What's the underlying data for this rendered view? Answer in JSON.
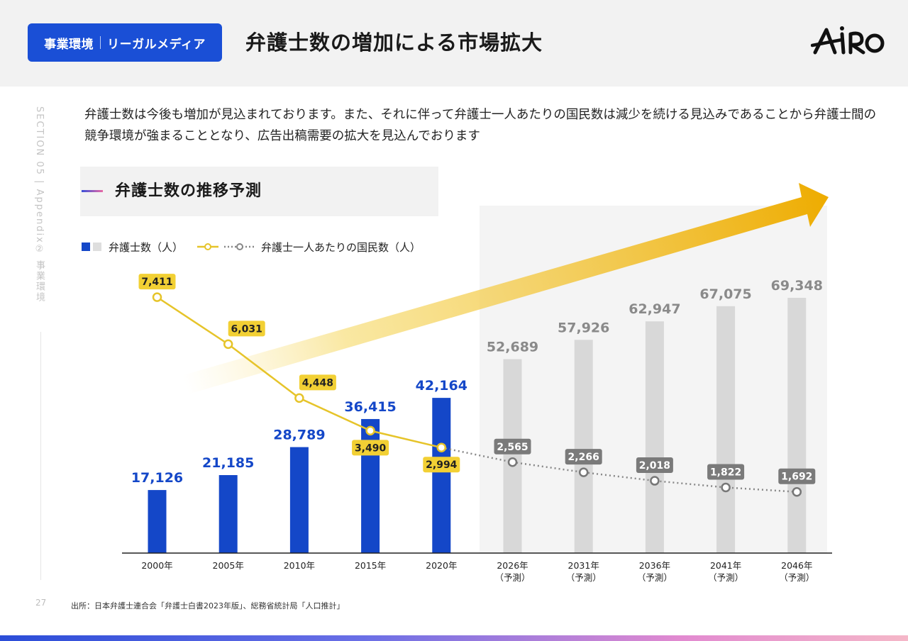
{
  "header": {
    "tag_left": "事業環境",
    "tag_right": "リーガルメディア",
    "title": "弁護士数の増加による市場拡大",
    "logo_text": "AiRo"
  },
  "side_label": "SECTION 05 | Appendix② 事業環境",
  "page_number": "27",
  "description": "弁護士数は今後も増加が見込まれております。また、それに伴って弁護士一人あたりの国民数は減少を続ける見込みであることから弁護士間の競争環境が強まることとなり、広告出稿需要の拡大を見込んでおります",
  "subtitle": "弁護士数の推移予測",
  "footnote": "出所：日本弁護士連合会「弁護士白書2023年版」、総務省統計局「人口推計」",
  "colors": {
    "actual_bar": "#1447c8",
    "forecast_bar": "#d8d8d8",
    "actual_line": "#e6c42a",
    "forecast_line": "#888888",
    "arrow": "#f0b400",
    "brand": "#1a4fd6"
  },
  "chart_data": {
    "type": "bar",
    "legend_placement": "top-left",
    "categories": [
      "2000年",
      "2005年",
      "2010年",
      "2015年",
      "2020年",
      "2026年",
      "2031年",
      "2036年",
      "2041年",
      "2046年"
    ],
    "category_notes": [
      "",
      "",
      "",
      "",
      "",
      "（予測）",
      "（予測）",
      "（予測）",
      "（予測）",
      "（予測）"
    ],
    "forecast_start_index": 5,
    "series": [
      {
        "name": "弁護士数（人）",
        "type": "bar",
        "values": [
          17126,
          21185,
          28789,
          36415,
          42164,
          52689,
          57926,
          62947,
          67075,
          69348
        ],
        "labels": [
          "17,126",
          "21,185",
          "28,789",
          "36,415",
          "42,164",
          "52,689",
          "57,926",
          "62,947",
          "67,075",
          "69,348"
        ]
      },
      {
        "name": "弁護士一人あたりの国民数（人）",
        "type": "line",
        "values": [
          7411,
          6031,
          4448,
          3490,
          2994,
          2565,
          2266,
          2018,
          1822,
          1692
        ],
        "labels": [
          "7,411",
          "6,031",
          "4,448",
          "3,490",
          "2,994",
          "2,565",
          "2,266",
          "2,018",
          "1,822",
          "1,692"
        ]
      }
    ],
    "ylim_bars": [
      0,
      90000
    ],
    "ylim_line": [
      0,
      9000
    ],
    "grid": false
  }
}
